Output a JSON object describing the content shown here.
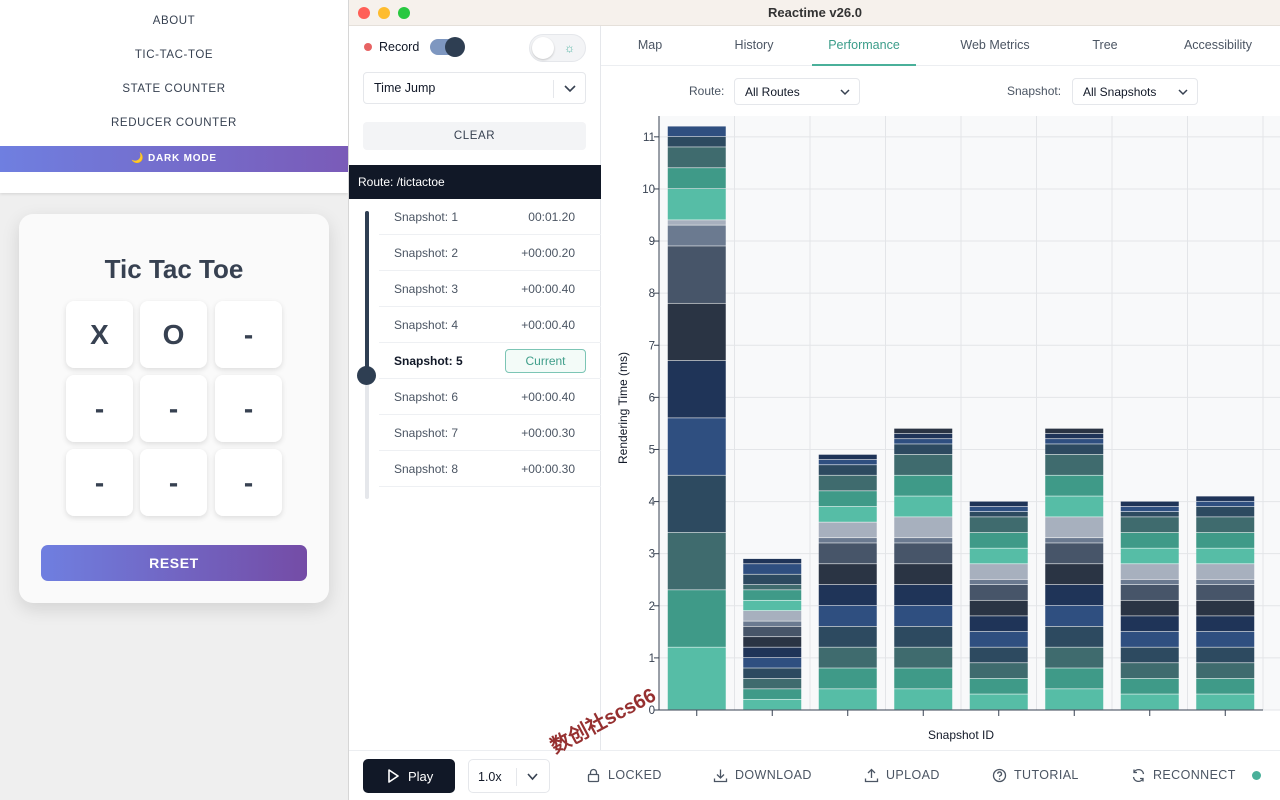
{
  "left_app": {
    "nav": [
      "ABOUT",
      "TIC-TAC-TOE",
      "STATE COUNTER",
      "REDUCER COUNTER"
    ],
    "dark_mode_label": "🌙 DARK MODE",
    "game": {
      "title": "Tic Tac Toe",
      "board": [
        "X",
        "O",
        "-",
        "-",
        "-",
        "-",
        "-",
        "-",
        "-"
      ],
      "reset_label": "RESET"
    }
  },
  "window": {
    "title": "Reactime v26.0"
  },
  "sidebar": {
    "record_label": "Record",
    "mode": "Time Jump",
    "clear_label": "CLEAR",
    "route": "Route: /tictactoe",
    "snapshots": [
      {
        "name": "Snapshot: 1",
        "time": "00:01.20"
      },
      {
        "name": "Snapshot: 2",
        "time": "+00:00.20"
      },
      {
        "name": "Snapshot: 3",
        "time": "+00:00.40"
      },
      {
        "name": "Snapshot: 4",
        "time": "+00:00.40"
      },
      {
        "name": "Snapshot: 5",
        "time": "Current"
      },
      {
        "name": "Snapshot: 6",
        "time": "+00:00.40"
      },
      {
        "name": "Snapshot: 7",
        "time": "+00:00.30"
      },
      {
        "name": "Snapshot: 8",
        "time": "+00:00.30"
      }
    ]
  },
  "tabs": [
    "Map",
    "History",
    "Performance",
    "Web Metrics",
    "Tree",
    "Accessibility"
  ],
  "active_tab": "Performance",
  "filters": {
    "route_label": "Route:",
    "route_value": "All Routes",
    "snapshot_label": "Snapshot:",
    "snapshot_value": "All Snapshots"
  },
  "chart_data": {
    "type": "bar",
    "stacked": true,
    "xlabel": "Snapshot ID",
    "ylabel": "Rendering Time (ms)",
    "ylim": [
      0,
      11.4
    ],
    "yticks": [
      0,
      1,
      2,
      3,
      4,
      5,
      6,
      7,
      8,
      9,
      10,
      11
    ],
    "grid": true,
    "bars": [
      {
        "total": 11.5,
        "segments": [
          1.2,
          1.1,
          1.1,
          1.1,
          1.1,
          1.1,
          1.1,
          1.1,
          0.4,
          0.1,
          0.6,
          0.4,
          0.4,
          0.2,
          0.2
        ]
      },
      {
        "total": 2.8,
        "segments": [
          0.2,
          0.2,
          0.2,
          0.2,
          0.2,
          0.2,
          0.2,
          0.2,
          0.1,
          0.2,
          0.2,
          0.2,
          0.1,
          0.2,
          0.2,
          0.1
        ]
      },
      {
        "total": 4.9,
        "segments": [
          0.4,
          0.4,
          0.4,
          0.4,
          0.4,
          0.4,
          0.4,
          0.4,
          0.1,
          0.3,
          0.3,
          0.3,
          0.3,
          0.2,
          0.1,
          0.1
        ]
      },
      {
        "total": 5.5,
        "segments": [
          0.4,
          0.4,
          0.4,
          0.4,
          0.4,
          0.4,
          0.4,
          0.4,
          0.1,
          0.4,
          0.4,
          0.4,
          0.4,
          0.2,
          0.1,
          0.1,
          0.1
        ]
      },
      {
        "total": 4.0,
        "segments": [
          0.3,
          0.3,
          0.3,
          0.3,
          0.3,
          0.3,
          0.3,
          0.3,
          0.1,
          0.3,
          0.3,
          0.3,
          0.3,
          0.1,
          0.1,
          0.1
        ]
      },
      {
        "total": 5.5,
        "segments": [
          0.4,
          0.4,
          0.4,
          0.4,
          0.4,
          0.4,
          0.4,
          0.4,
          0.1,
          0.4,
          0.4,
          0.4,
          0.4,
          0.2,
          0.1,
          0.1,
          0.1
        ]
      },
      {
        "total": 4.0,
        "segments": [
          0.3,
          0.3,
          0.3,
          0.3,
          0.3,
          0.3,
          0.3,
          0.3,
          0.1,
          0.3,
          0.3,
          0.3,
          0.3,
          0.1,
          0.1,
          0.1
        ]
      },
      {
        "total": 4.1,
        "segments": [
          0.3,
          0.3,
          0.3,
          0.3,
          0.3,
          0.3,
          0.3,
          0.3,
          0.1,
          0.3,
          0.3,
          0.3,
          0.3,
          0.2,
          0.1,
          0.1
        ]
      }
    ],
    "segment_colors": [
      "#56bda6",
      "#3f9a88",
      "#3f6b6e",
      "#2d4a60",
      "#2f4f80",
      "#1f3458",
      "#2a3444",
      "#475569",
      "#6b7a90",
      "#a7b0be"
    ]
  },
  "footer": {
    "play_label": "Play",
    "speed": "1.0x",
    "buttons": [
      "LOCKED",
      "DOWNLOAD",
      "UPLOAD",
      "TUTORIAL",
      "RECONNECT"
    ]
  },
  "watermark": "数创社scs66",
  "colors": {
    "accent": "#4ab09a",
    "dark": "#111827",
    "record": "#e76363"
  }
}
